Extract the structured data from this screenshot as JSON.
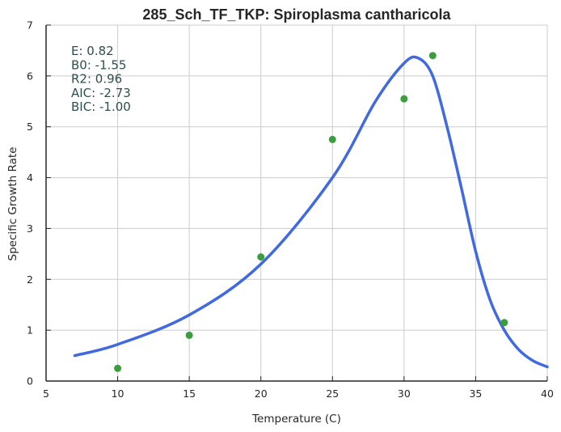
{
  "chart_data": {
    "type": "scatter",
    "title": "285_Sch_TF_TKP: Spiroplasma cantharicola",
    "xlabel": "Temperature (C)",
    "ylabel": "Specific Growth Rate",
    "xlim": [
      5,
      40
    ],
    "ylim": [
      0,
      7
    ],
    "x_ticks": [
      "5",
      "10",
      "15",
      "20",
      "25",
      "30",
      "35",
      "40"
    ],
    "y_ticks": [
      "0",
      "1",
      "2",
      "3",
      "4",
      "5",
      "6",
      "7"
    ],
    "grid": true,
    "points": {
      "color": "#3c9d3c",
      "x": [
        10,
        15,
        20,
        25,
        30,
        32,
        37
      ],
      "y": [
        0.25,
        0.9,
        2.44,
        4.75,
        5.55,
        6.4,
        1.15
      ]
    },
    "fit": {
      "color": "#4169e1",
      "x": [
        7,
        10,
        15,
        20,
        25,
        28,
        30,
        31,
        32,
        33,
        34,
        35,
        36,
        37,
        38,
        39,
        40
      ],
      "y": [
        0.5,
        0.72,
        1.3,
        2.3,
        4.0,
        5.5,
        6.25,
        6.35,
        6.0,
        5.0,
        3.8,
        2.55,
        1.6,
        1.0,
        0.62,
        0.4,
        0.28
      ]
    },
    "stats": [
      "E:  0.82",
      "B0:  -1.55",
      "R2:  0.96",
      "AIC: -2.73",
      "BIC: -1.00"
    ],
    "stats_color": "#2f4f4f"
  }
}
